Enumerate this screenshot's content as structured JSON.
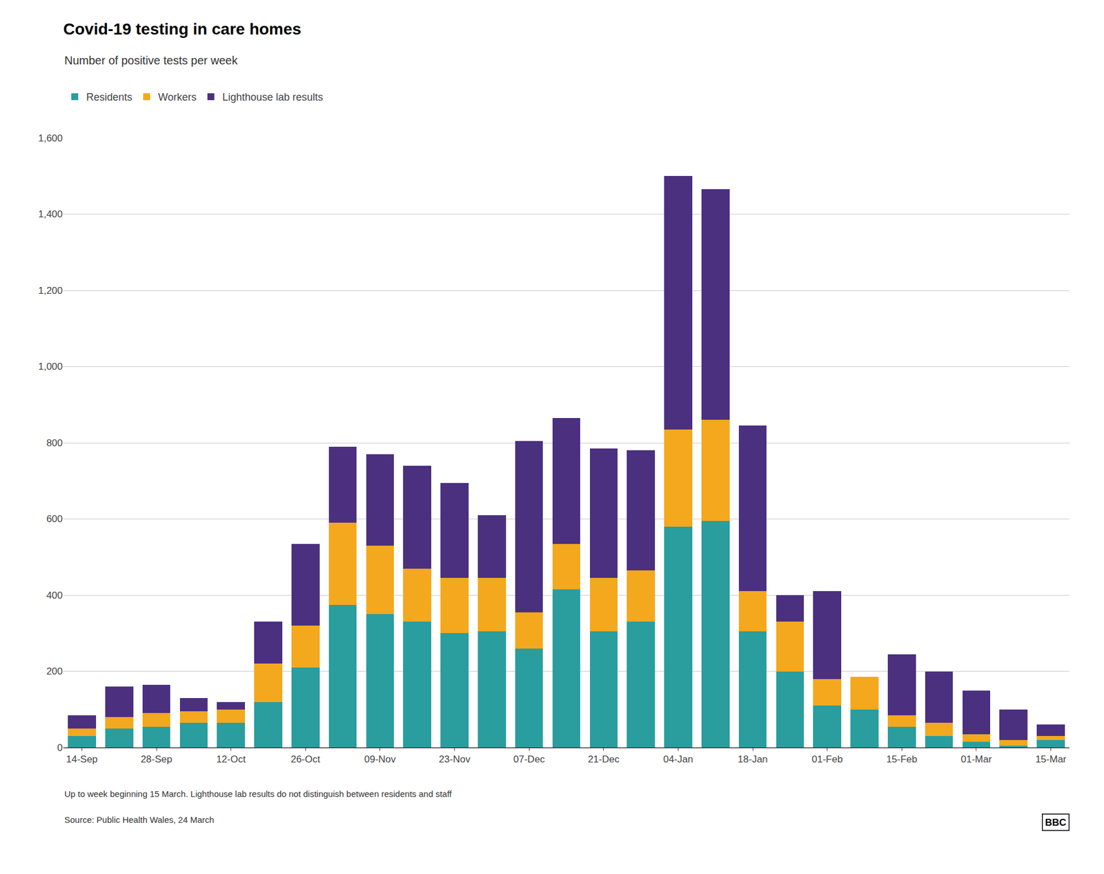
{
  "chart_data": {
    "type": "bar",
    "stacked": true,
    "title": "Covid-19 testing in care homes",
    "subtitle": "Number of positive tests per week",
    "annotations": [
      "Up to week beginning 15 March. Lighthouse lab results do not distinguish between residents and staff",
      "Source: Public Health Wales, 24 March",
      "BBC"
    ],
    "categories": [
      "14-Sep",
      null,
      "28-Sep",
      null,
      "12-Oct",
      null,
      "26-Oct",
      null,
      "09-Nov",
      null,
      "23-Nov",
      null,
      "07-Dec",
      null,
      "21-Dec",
      null,
      "04-Jan",
      null,
      "18-Jan",
      null,
      "01-Feb",
      null,
      "15-Feb",
      null,
      "01-Mar",
      null,
      "15-Mar"
    ],
    "series": [
      {
        "name": "Residents",
        "color": "#2a9d9f",
        "values": [
          30,
          50,
          55,
          65,
          65,
          120,
          210,
          375,
          350,
          330,
          300,
          305,
          260,
          415,
          305,
          330,
          580,
          595,
          305,
          200,
          110,
          100,
          55,
          30,
          15,
          5,
          20
        ]
      },
      {
        "name": "Workers",
        "color": "#f4a81d",
        "values": [
          20,
          30,
          35,
          30,
          35,
          100,
          110,
          215,
          180,
          140,
          145,
          140,
          95,
          120,
          140,
          135,
          255,
          265,
          105,
          130,
          70,
          85,
          30,
          35,
          20,
          15,
          10
        ]
      },
      {
        "name": "Lighthouse lab results",
        "color": "#4b3080",
        "values": [
          35,
          80,
          75,
          35,
          20,
          110,
          215,
          200,
          240,
          270,
          250,
          165,
          450,
          330,
          340,
          315,
          665,
          605,
          435,
          70,
          230,
          0,
          160,
          135,
          115,
          80,
          30
        ]
      }
    ],
    "ylim": [
      0,
      1600
    ],
    "yticks": [
      0,
      200,
      400,
      600,
      800,
      {
        "value": 1000,
        "label": "1,000"
      },
      {
        "value": 1200,
        "label": "1,200"
      },
      {
        "value": 1400,
        "label": "1,400"
      },
      {
        "value": 1600,
        "label": "1,600"
      }
    ],
    "grid": true,
    "legend": "upper left"
  }
}
